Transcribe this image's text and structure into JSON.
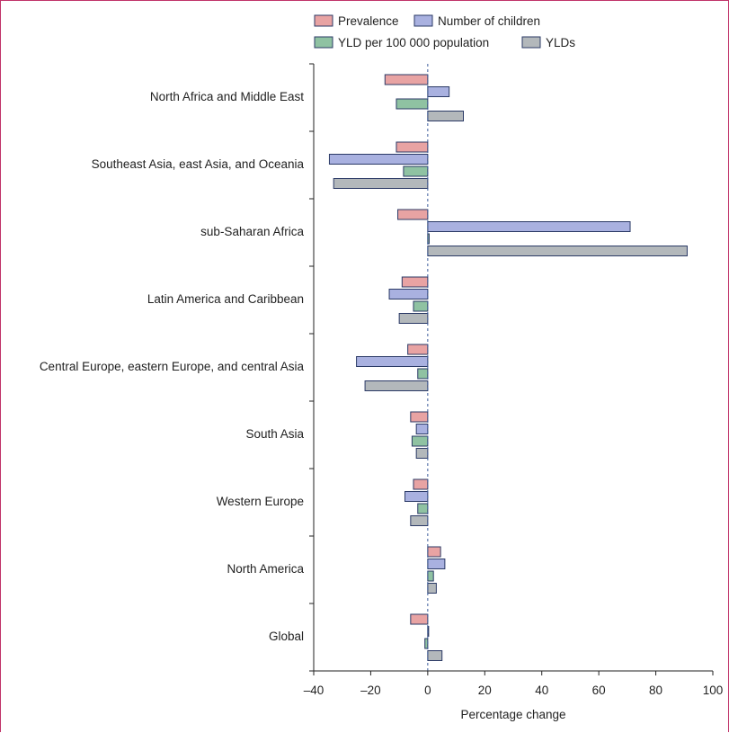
{
  "chart_data": {
    "type": "bar",
    "orientation": "horizontal",
    "categories": [
      "North Africa and Middle East",
      "Southeast Asia, east Asia, and Oceania",
      "sub-Saharan Africa",
      "Latin America and Caribbean",
      "Central Europe, eastern Europe, and central Asia",
      "South Asia",
      "Western Europe",
      "North America",
      "Global"
    ],
    "series": [
      {
        "name": "Prevalence",
        "color": "#e8a3a3",
        "values": [
          -15,
          -11,
          -10.5,
          -9,
          -7,
          -6,
          -5,
          4.5,
          -6
        ]
      },
      {
        "name": "Number of children",
        "color": "#a9b1e0",
        "values": [
          7.5,
          -34.5,
          71,
          -13.5,
          -25,
          -4,
          -8,
          6,
          0.3
        ]
      },
      {
        "name": "YLD per 100 000 population",
        "color": "#8fc2a2",
        "values": [
          -11,
          -8.5,
          0.5,
          -5,
          -3.5,
          -5.5,
          -3.5,
          2,
          -1
        ]
      },
      {
        "name": "YLDs",
        "color": "#b3b8bb",
        "values": [
          12.5,
          -33,
          91,
          -10,
          -22,
          -4,
          -6,
          3,
          5
        ]
      }
    ],
    "xlabel": "Percentage change",
    "xlim": [
      -40,
      100
    ],
    "xticks": [
      "-40",
      "-20",
      "0",
      "20",
      "40",
      "60",
      "80",
      "100"
    ],
    "grid": false,
    "legend_position": "top"
  }
}
